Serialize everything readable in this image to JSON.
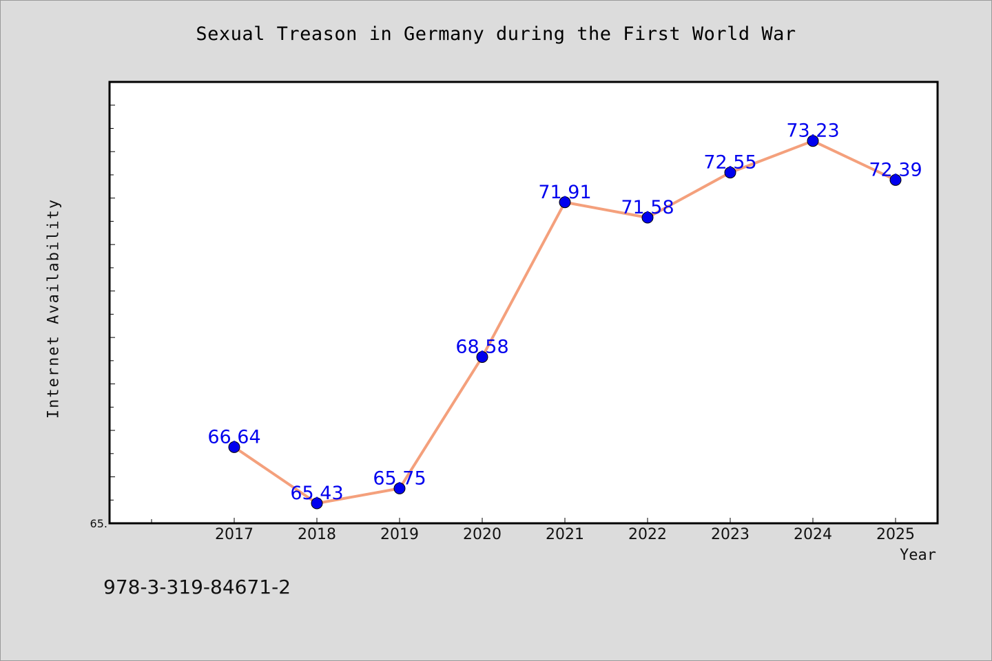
{
  "chart_data": {
    "type": "line",
    "title": "Sexual Treason in Germany during the First World War",
    "xlabel": "Year",
    "ylabel": "Internet Availability",
    "categories": [
      "2017",
      "2018",
      "2019",
      "2020",
      "2021",
      "2022",
      "2023",
      "2024",
      "2025"
    ],
    "values": [
      66.64,
      65.43,
      65.75,
      68.58,
      71.91,
      71.58,
      72.55,
      73.23,
      72.39
    ],
    "data_labels": [
      "66.64",
      "65.43",
      "65.75",
      "68.58",
      "71.91",
      "71.58",
      "72.55",
      "73.23",
      "72.39"
    ],
    "y_tick_label": "65.",
    "ylim": [
      65.0,
      74.5
    ],
    "grid": false,
    "line_color": "#f4a07c",
    "marker_color": "#0000ee",
    "label_color": "#0000ee",
    "background": "#dcdcdc",
    "plot_background": "#ffffff"
  },
  "footer": {
    "isbn": "978-3-319-84671-2"
  }
}
